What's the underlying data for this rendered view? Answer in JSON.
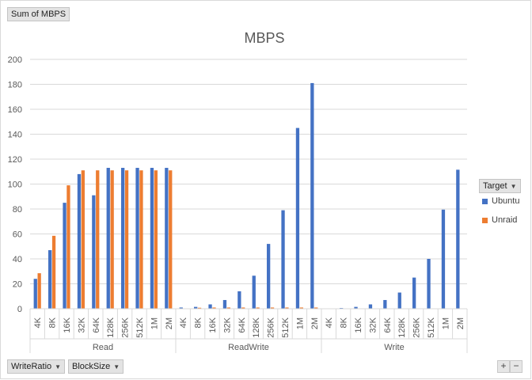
{
  "pivot": {
    "values_button": "Sum of MBPS",
    "row_fields": [
      {
        "label": "WriteRatio"
      },
      {
        "label": "BlockSize"
      }
    ],
    "legend_field": "Target",
    "zoom_in": "+",
    "zoom_out": "−"
  },
  "chart_data": {
    "type": "bar",
    "title": "MBPS",
    "ylim": [
      0,
      200
    ],
    "yticks": [
      0,
      20,
      40,
      60,
      80,
      100,
      120,
      140,
      160,
      180,
      200
    ],
    "grid": true,
    "legend_position": "right",
    "groups": [
      "Read",
      "ReadWrite",
      "Write"
    ],
    "categories": [
      "4K",
      "8K",
      "16K",
      "32K",
      "64K",
      "128K",
      "256K",
      "512K",
      "1M",
      "2M"
    ],
    "series": [
      {
        "name": "Ubuntu",
        "color": "#4472c4",
        "values": [
          [
            24,
            47,
            85,
            108,
            91,
            113,
            113,
            113,
            113,
            113
          ],
          [
            1,
            1.5,
            3.5,
            7,
            14,
            26.5,
            52,
            79,
            145,
            181
          ],
          [
            0.2,
            0.6,
            1.5,
            3.5,
            7,
            13,
            25,
            40,
            79.5,
            111.5
          ]
        ]
      },
      {
        "name": "Unraid",
        "color": "#ed7d31",
        "values": [
          [
            28.5,
            58.5,
            99,
            111,
            111,
            111,
            111,
            111,
            111,
            111
          ],
          [
            0.3,
            0.8,
            1,
            1,
            1,
            1,
            1,
            1,
            1,
            1
          ],
          [
            0,
            0,
            0,
            0,
            0,
            0,
            0,
            0,
            0,
            0
          ]
        ]
      }
    ]
  }
}
